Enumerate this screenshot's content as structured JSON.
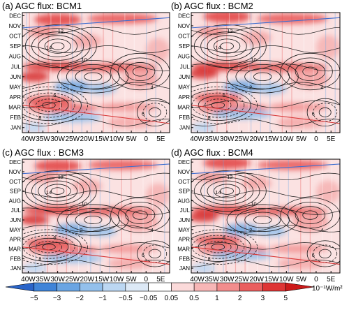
{
  "figure": {
    "colorbar": {
      "ticks": [
        "−5",
        "−3",
        "−2",
        "−1",
        "−0.5",
        "−0.05",
        "0.05",
        "0.5",
        "1",
        "2",
        "3",
        "5"
      ],
      "colors": [
        "#2a64c8",
        "#3f84d8",
        "#6aa5e3",
        "#93c0ec",
        "#bcd7f2",
        "#dde9f6",
        "#ffffff",
        "#fbdada",
        "#f7b6b6",
        "#f28d8d",
        "#ea5f5f",
        "#de3535",
        "#cc1a1a"
      ],
      "units_label": "10⁻¹W/m²"
    }
  },
  "chart_data": [
    {
      "type": "heatmap",
      "title": "(a) AGC flux: BCM1",
      "x_ticks": [
        "40W",
        "35W",
        "30W",
        "25W",
        "20W",
        "15W",
        "10W",
        "5W",
        "0",
        "5E"
      ],
      "y_ticks": [
        "JAN",
        "FEB",
        "MAR",
        "APR",
        "MAY",
        "JUN",
        "JUL",
        "AUG",
        "SEP",
        "OCT",
        "NOV",
        "DEC"
      ],
      "contour_labels": [
        {
          "text": "12",
          "lon": -29,
          "month": 10.5
        },
        {
          "text": "14",
          "lon": -33,
          "month": 8.9
        },
        {
          "text": "10",
          "lon": -21,
          "month": 7.7
        },
        {
          "text": "2",
          "lon": -22,
          "month": 5.0
        },
        {
          "text": "6",
          "lon": -31,
          "month": 4.2
        },
        {
          "text": "4",
          "lon": 2,
          "month": 5.0
        },
        {
          "text": "8",
          "lon": -36,
          "month": 2.0
        },
        {
          "text": "6",
          "lon": -1,
          "month": 2.4
        }
      ],
      "xlim": [
        -42,
        8
      ],
      "ylim": [
        0.5,
        12.3
      ]
    },
    {
      "type": "heatmap",
      "title": "(b) AGC flux : BCM2",
      "x_ticks": [
        "40W",
        "35W",
        "30W",
        "25W",
        "20W",
        "15W",
        "10W",
        "5W",
        "0",
        "5E"
      ],
      "y_ticks": [
        "JAN",
        "FEB",
        "MAR",
        "APR",
        "MAY",
        "JUN",
        "JUL",
        "AUG",
        "SEP",
        "OCT",
        "NOV",
        "DEC"
      ],
      "contour_labels": [
        {
          "text": "12",
          "lon": -29,
          "month": 10.5
        },
        {
          "text": "14",
          "lon": -33,
          "month": 8.9
        },
        {
          "text": "10",
          "lon": -21,
          "month": 7.7
        },
        {
          "text": "2",
          "lon": -22,
          "month": 5.0
        },
        {
          "text": "6",
          "lon": -31,
          "month": 4.2
        },
        {
          "text": "4",
          "lon": 2,
          "month": 5.0
        },
        {
          "text": "8",
          "lon": -36,
          "month": 2.0
        },
        {
          "text": "6",
          "lon": -1,
          "month": 2.4
        }
      ],
      "xlim": [
        -42,
        8
      ],
      "ylim": [
        0.5,
        12.3
      ]
    },
    {
      "type": "heatmap",
      "title": "(c) AGC flux : BCM3",
      "x_ticks": [
        "40W",
        "35W",
        "30W",
        "25W",
        "20W",
        "15W",
        "10W",
        "5W",
        "0",
        "5E"
      ],
      "y_ticks": [
        "JAN",
        "FEB",
        "MAR",
        "APR",
        "MAY",
        "JUN",
        "JUL",
        "AUG",
        "SEP",
        "OCT",
        "NOV",
        "DEC"
      ],
      "contour_labels": [
        {
          "text": "12",
          "lon": -29,
          "month": 10.5
        },
        {
          "text": "14",
          "lon": -33,
          "month": 8.9
        },
        {
          "text": "10",
          "lon": -21,
          "month": 7.7
        },
        {
          "text": "2",
          "lon": -22,
          "month": 5.0
        },
        {
          "text": "6",
          "lon": -31,
          "month": 4.2
        },
        {
          "text": "4",
          "lon": 2,
          "month": 5.0
        },
        {
          "text": "8",
          "lon": -36,
          "month": 2.0
        },
        {
          "text": "6",
          "lon": -1,
          "month": 2.4
        }
      ],
      "xlim": [
        -42,
        8
      ],
      "ylim": [
        0.5,
        12.3
      ]
    },
    {
      "type": "heatmap",
      "title": "(d) AGC flux : BCM4",
      "x_ticks": [
        "40W",
        "35W",
        "30W",
        "25W",
        "20W",
        "15W",
        "10W",
        "5W",
        "0",
        "5E"
      ],
      "y_ticks": [
        "JAN",
        "FEB",
        "MAR",
        "APR",
        "MAY",
        "JUN",
        "JUL",
        "AUG",
        "SEP",
        "OCT",
        "NOV",
        "DEC"
      ],
      "contour_labels": [
        {
          "text": "12",
          "lon": -29,
          "month": 10.5
        },
        {
          "text": "14",
          "lon": -33,
          "month": 8.9
        },
        {
          "text": "10",
          "lon": -21,
          "month": 7.7
        },
        {
          "text": "2",
          "lon": -22,
          "month": 5.0
        },
        {
          "text": "6",
          "lon": -31,
          "month": 4.2
        },
        {
          "text": "4",
          "lon": 2,
          "month": 5.0
        },
        {
          "text": "8",
          "lon": -36,
          "month": 2.0
        },
        {
          "text": "6",
          "lon": -1,
          "month": 2.4
        }
      ],
      "xlim": [
        -42,
        8
      ],
      "ylim": [
        0.5,
        12.3
      ]
    }
  ]
}
